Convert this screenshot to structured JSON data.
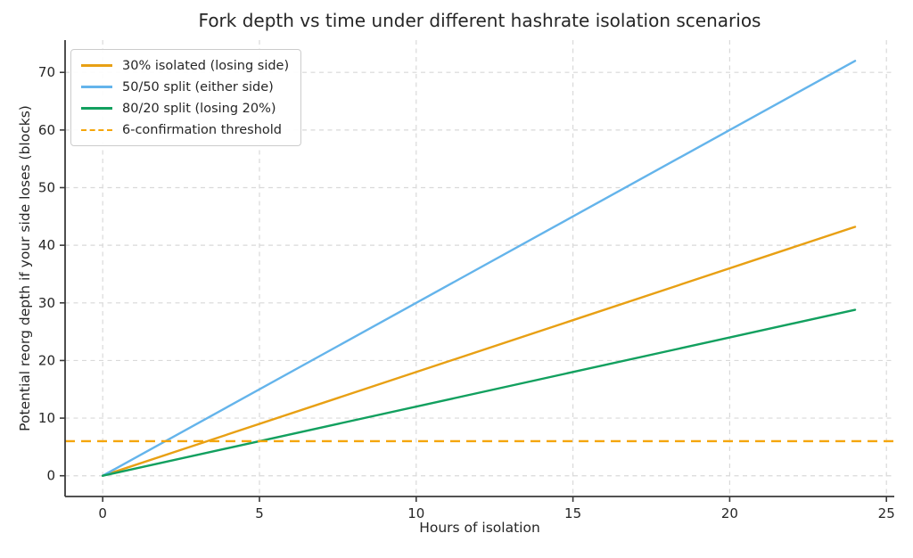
{
  "chart_data": {
    "type": "line",
    "title": "Fork depth vs time under different hashrate isolation scenarios",
    "xlabel": "Hours of isolation",
    "ylabel": "Potential reorg depth if your side loses (blocks)",
    "x": [
      0,
      24
    ],
    "series": [
      {
        "name": "30% isolated (losing side)",
        "color": "#E8A014",
        "style": "solid",
        "values": [
          0,
          43.2
        ]
      },
      {
        "name": "50/50 split (either side)",
        "color": "#64B4EB",
        "style": "solid",
        "values": [
          0,
          72
        ]
      },
      {
        "name": "80/20 split (losing 20%)",
        "color": "#12A05F",
        "style": "solid",
        "values": [
          0,
          28.8
        ]
      }
    ],
    "threshold": {
      "name": "6-confirmation threshold",
      "color": "#F5A60A",
      "style": "dashed",
      "value": 6
    },
    "xticks": [
      0,
      5,
      10,
      15,
      20,
      25
    ],
    "yticks": [
      0,
      10,
      20,
      30,
      40,
      50,
      60,
      70
    ],
    "xlim": [
      -1.2,
      25.25
    ],
    "ylim": [
      -3.6,
      75.6
    ],
    "grid": true,
    "grid_style": "dashed",
    "legend_position": "upper left",
    "colors": {
      "grid": "#d9d9d9",
      "spine": "#3a3a3a",
      "tick_label": "#262626",
      "background": "#ffffff"
    }
  }
}
